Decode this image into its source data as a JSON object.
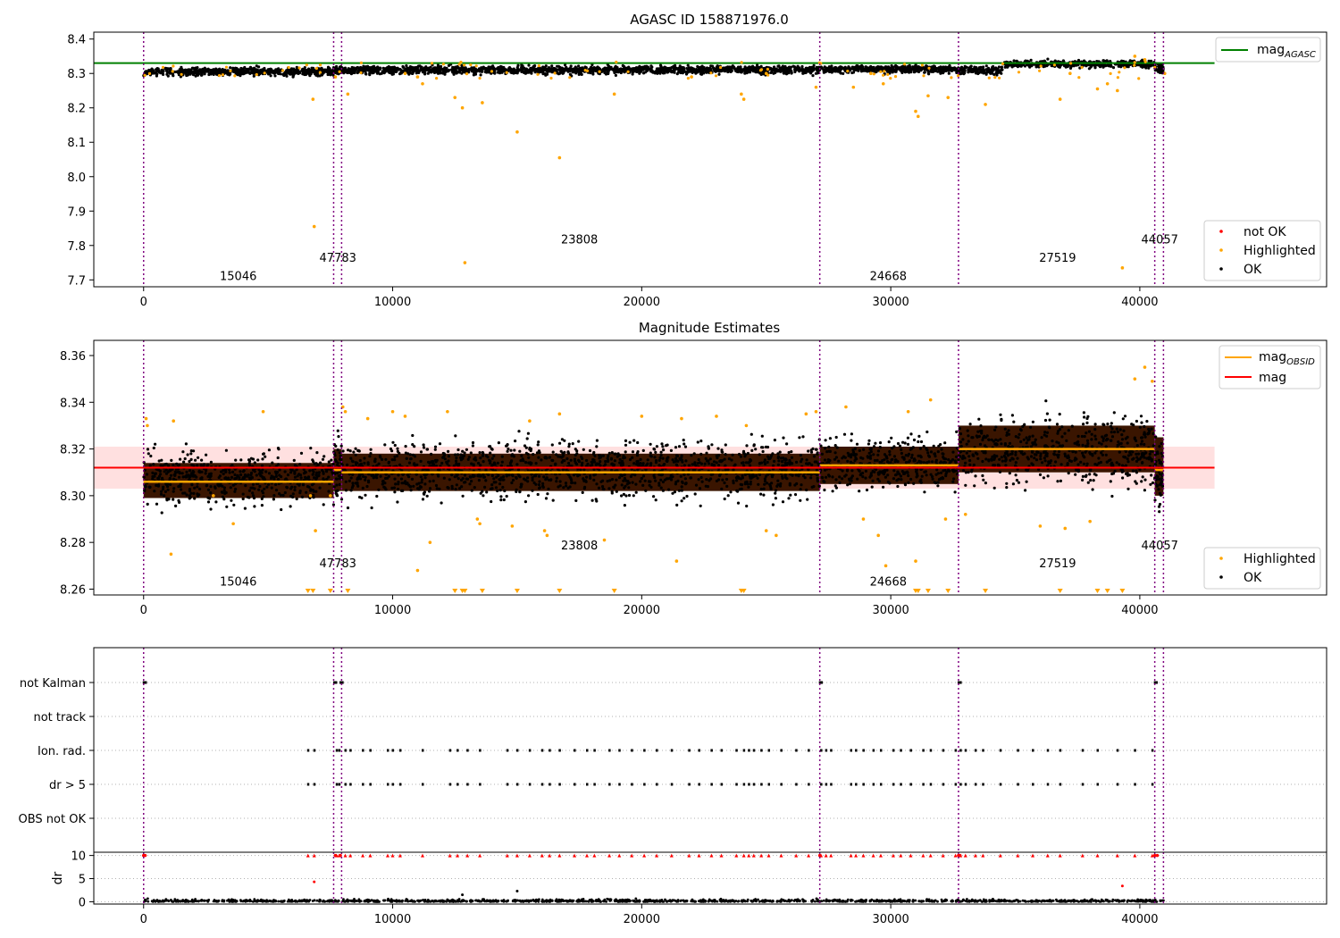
{
  "figure": {
    "background": "#ffffff"
  },
  "colors": {
    "agasc_line": "#008000",
    "mag_line": "#ff0000",
    "mag_band": "#ffcccc",
    "obsid_line": "#ffa500",
    "highlighted": "#ffa500",
    "not_ok": "#ff0000",
    "ok": "#000000",
    "obsid_boundary": "#800080",
    "band_dark": "#3a1500",
    "grid": "#b0b0b0"
  },
  "chart_data": [
    {
      "id": "agasc",
      "type": "scatter",
      "title": "AGASC ID 158871976.0",
      "xlim": [
        -2000,
        47500
      ],
      "ylim": [
        7.68,
        8.42
      ],
      "xticks": [
        0,
        10000,
        20000,
        30000,
        40000
      ],
      "yticks": [
        7.7,
        7.8,
        7.9,
        8.0,
        8.1,
        8.2,
        8.3,
        8.4
      ],
      "legend_top": {
        "placement": "top-right",
        "entries": [
          {
            "label": "mag",
            "subscript": "AGASC",
            "kind": "line",
            "color": "#008000"
          }
        ]
      },
      "legend_bottom": {
        "placement": "bottom-right",
        "entries": [
          {
            "label": "not OK",
            "kind": "dot",
            "color": "#ff0000"
          },
          {
            "label": "Highlighted",
            "kind": "dot",
            "color": "#ffa500"
          },
          {
            "label": "OK",
            "kind": "dot",
            "color": "#000000"
          }
        ]
      },
      "hlines": [
        {
          "name": "mag_AGASC",
          "y": 8.33,
          "xmin": -2000,
          "xmax": 43000,
          "color": "#008000"
        }
      ],
      "obsid_boundaries": [
        0,
        7630,
        7950,
        27150,
        32720,
        40600,
        40950
      ],
      "obsid_labels": [
        {
          "text": "15046",
          "x": 3800,
          "y": 7.7
        },
        {
          "text": "47783",
          "x": 7800,
          "y": 7.753
        },
        {
          "text": "23808",
          "x": 17500,
          "y": 7.806
        },
        {
          "text": "24668",
          "x": 29900,
          "y": 7.7
        },
        {
          "text": "27519",
          "x": 36700,
          "y": 7.753
        },
        {
          "text": "44057",
          "x": 40800,
          "y": 7.806
        }
      ],
      "ok_bands": [
        {
          "x0": 0,
          "x1": 7630,
          "ylo": 8.285,
          "yhi": 8.325
        },
        {
          "x0": 7630,
          "x1": 7950,
          "ylo": 8.29,
          "yhi": 8.33
        },
        {
          "x0": 7950,
          "x1": 27150,
          "ylo": 8.29,
          "yhi": 8.33
        },
        {
          "x0": 27150,
          "x1": 32720,
          "ylo": 8.295,
          "yhi": 8.33
        },
        {
          "x0": 32720,
          "x1": 34500,
          "ylo": 8.288,
          "yhi": 8.33
        },
        {
          "x0": 34500,
          "x1": 40600,
          "ylo": 8.31,
          "yhi": 8.345
        },
        {
          "x0": 40600,
          "x1": 40950,
          "ylo": 8.285,
          "yhi": 8.34
        }
      ],
      "highlighted_points": [
        [
          6800,
          8.225
        ],
        [
          6850,
          7.855
        ],
        [
          7700,
          8.29
        ],
        [
          8200,
          8.24
        ],
        [
          10500,
          8.3
        ],
        [
          11000,
          8.29
        ],
        [
          11200,
          8.27
        ],
        [
          12500,
          8.23
        ],
        [
          12800,
          8.2
        ],
        [
          12900,
          7.75
        ],
        [
          13600,
          8.215
        ],
        [
          15000,
          8.13
        ],
        [
          16700,
          8.055
        ],
        [
          18900,
          8.24
        ],
        [
          22000,
          8.29
        ],
        [
          24000,
          8.24
        ],
        [
          24100,
          8.225
        ],
        [
          25000,
          8.3
        ],
        [
          27000,
          8.26
        ],
        [
          28500,
          8.26
        ],
        [
          29200,
          8.3
        ],
        [
          29700,
          8.27
        ],
        [
          31000,
          8.19
        ],
        [
          31100,
          8.175
        ],
        [
          31500,
          8.235
        ],
        [
          32300,
          8.23
        ],
        [
          33800,
          8.21
        ],
        [
          36800,
          8.225
        ],
        [
          37200,
          8.3
        ],
        [
          38300,
          8.255
        ],
        [
          38700,
          8.27
        ],
        [
          39100,
          8.25
        ],
        [
          39300,
          7.735
        ],
        [
          39800,
          8.35
        ],
        [
          40200,
          8.34
        ],
        [
          41000,
          8.3
        ]
      ]
    },
    {
      "id": "magnitude",
      "type": "scatter",
      "title": "Magnitude Estimates",
      "xlim": [
        -2000,
        47500
      ],
      "ylim": [
        8.2575,
        8.3665
      ],
      "xticks": [
        0,
        10000,
        20000,
        30000,
        40000
      ],
      "yticks": [
        8.26,
        8.28,
        8.3,
        8.32,
        8.34,
        8.36
      ],
      "legend_top": {
        "placement": "top-right",
        "entries": [
          {
            "label": "mag",
            "subscript": "OBSID",
            "kind": "line",
            "color": "#ffa500"
          },
          {
            "label": "mag",
            "kind": "line",
            "color": "#ff0000"
          }
        ]
      },
      "legend_bottom": {
        "placement": "bottom-right",
        "entries": [
          {
            "label": "Highlighted",
            "kind": "dot",
            "color": "#ffa500"
          },
          {
            "label": "OK",
            "kind": "dot",
            "color": "#000000"
          }
        ]
      },
      "mag": {
        "value": 8.312,
        "band": [
          8.303,
          8.321
        ],
        "xmin": -2000,
        "xmax": 43000
      },
      "mag_obsid": [
        {
          "x0": 0,
          "x1": 7630,
          "y": 8.306
        },
        {
          "x0": 7630,
          "x1": 7950,
          "y": 8.311
        },
        {
          "x0": 7950,
          "x1": 27150,
          "y": 8.31
        },
        {
          "x0": 27150,
          "x1": 32720,
          "y": 8.313
        },
        {
          "x0": 32720,
          "x1": 40600,
          "y": 8.32
        },
        {
          "x0": 40600,
          "x1": 40950,
          "y": 8.311
        }
      ],
      "obsid_boundaries": [
        0,
        7630,
        7950,
        27150,
        32720,
        40600,
        40950
      ],
      "obsid_labels": [
        {
          "text": "15046",
          "x": 3800,
          "y": 8.2615
        },
        {
          "text": "47783",
          "x": 7800,
          "y": 8.2693
        },
        {
          "text": "23808",
          "x": 17500,
          "y": 8.2771
        },
        {
          "text": "24668",
          "x": 29900,
          "y": 8.2615
        },
        {
          "text": "27519",
          "x": 36700,
          "y": 8.2693
        },
        {
          "text": "44057",
          "x": 40800,
          "y": 8.2771
        }
      ],
      "ok_bands": [
        {
          "x0": 0,
          "x1": 7630,
          "lo": 8.291,
          "hi": 8.324,
          "core_lo": 8.299,
          "core_hi": 8.314
        },
        {
          "x0": 7630,
          "x1": 7950,
          "lo": 8.294,
          "hi": 8.332,
          "core_lo": 8.302,
          "core_hi": 8.32
        },
        {
          "x0": 7950,
          "x1": 27150,
          "lo": 8.293,
          "hi": 8.329,
          "core_lo": 8.302,
          "core_hi": 8.318
        },
        {
          "x0": 27150,
          "x1": 32720,
          "lo": 8.297,
          "hi": 8.33,
          "core_lo": 8.305,
          "core_hi": 8.321
        },
        {
          "x0": 32720,
          "x1": 40600,
          "lo": 8.296,
          "hi": 8.342,
          "core_lo": 8.31,
          "core_hi": 8.33
        },
        {
          "x0": 40600,
          "x1": 40950,
          "lo": 8.285,
          "hi": 8.335,
          "core_lo": 8.3,
          "core_hi": 8.325
        }
      ],
      "highlighted_points": [
        [
          100,
          8.333
        ],
        [
          150,
          8.33
        ],
        [
          1100,
          8.275
        ],
        [
          1200,
          8.332
        ],
        [
          2800,
          8.3
        ],
        [
          3600,
          8.288
        ],
        [
          4800,
          8.336
        ],
        [
          6700,
          8.3
        ],
        [
          6900,
          8.285
        ],
        [
          7500,
          8.3
        ],
        [
          8000,
          8.338
        ],
        [
          8100,
          8.336
        ],
        [
          9000,
          8.333
        ],
        [
          10000,
          8.336
        ],
        [
          10500,
          8.334
        ],
        [
          11000,
          8.268
        ],
        [
          11500,
          8.28
        ],
        [
          12200,
          8.336
        ],
        [
          13400,
          8.29
        ],
        [
          13500,
          8.288
        ],
        [
          14800,
          8.287
        ],
        [
          15500,
          8.332
        ],
        [
          16100,
          8.285
        ],
        [
          16200,
          8.283
        ],
        [
          16700,
          8.335
        ],
        [
          18500,
          8.281
        ],
        [
          20000,
          8.334
        ],
        [
          21400,
          8.272
        ],
        [
          21600,
          8.333
        ],
        [
          23000,
          8.334
        ],
        [
          24200,
          8.33
        ],
        [
          25000,
          8.285
        ],
        [
          25400,
          8.283
        ],
        [
          26600,
          8.335
        ],
        [
          27000,
          8.336
        ],
        [
          28200,
          8.338
        ],
        [
          28900,
          8.29
        ],
        [
          29500,
          8.283
        ],
        [
          29800,
          8.27
        ],
        [
          30700,
          8.336
        ],
        [
          31000,
          8.272
        ],
        [
          31600,
          8.341
        ],
        [
          32200,
          8.29
        ],
        [
          33000,
          8.292
        ],
        [
          36000,
          8.287
        ],
        [
          37000,
          8.286
        ],
        [
          38000,
          8.289
        ],
        [
          39800,
          8.35
        ],
        [
          40200,
          8.355
        ],
        [
          40500,
          8.349
        ]
      ],
      "below_range_markers": [
        6600,
        6800,
        7500,
        8200,
        12500,
        12800,
        12900,
        13600,
        15000,
        16700,
        18900,
        24000,
        24100,
        31000,
        31100,
        31500,
        32300,
        33800,
        36800,
        38300,
        38700,
        39300
      ]
    },
    {
      "id": "flags",
      "type": "scatter",
      "title": "",
      "xlim": [
        -2000,
        47500
      ],
      "categories": [
        "not Kalman",
        "not track",
        "Ion. rad.",
        "dr > 5",
        "OBS not OK"
      ],
      "grid": "y-dotted",
      "obsid_boundaries": [
        0,
        7630,
        7950,
        27150,
        32720,
        40600,
        40950
      ],
      "not_kalman_x": [
        0,
        60,
        7650,
        7700,
        7900,
        7960,
        27150,
        27200,
        32720,
        32780,
        40600,
        40650
      ],
      "event_x": [
        6600,
        6850,
        7750,
        7850,
        8100,
        8300,
        8800,
        9100,
        9800,
        10000,
        10300,
        11200,
        12300,
        12600,
        13000,
        13500,
        14600,
        15000,
        15500,
        16000,
        16300,
        16700,
        17300,
        17800,
        18100,
        18700,
        19100,
        19600,
        20100,
        20600,
        21200,
        21900,
        22300,
        22800,
        23200,
        23800,
        24100,
        24300,
        24500,
        24800,
        25100,
        25600,
        26200,
        26700,
        27200,
        27400,
        27600,
        28400,
        28600,
        28900,
        29300,
        29600,
        30100,
        30400,
        30800,
        31300,
        31600,
        32100,
        32600,
        32800,
        33000,
        33400,
        33700,
        34400,
        35100,
        35700,
        36300,
        36800,
        37700,
        38300,
        39100,
        39800,
        40500
      ]
    },
    {
      "id": "dr",
      "type": "scatter",
      "title": "",
      "ylabel": "dr",
      "xlim": [
        -2000,
        47500
      ],
      "ylim": [
        -0.5,
        10.7
      ],
      "xticks": [
        0,
        10000,
        20000,
        30000,
        40000
      ],
      "yticks": [
        0,
        5,
        10
      ],
      "clipped_value": 10,
      "outliers": [
        [
          6850,
          4.3
        ],
        [
          12800,
          1.5
        ],
        [
          15000,
          2.3
        ],
        [
          39300,
          3.4
        ]
      ]
    }
  ]
}
